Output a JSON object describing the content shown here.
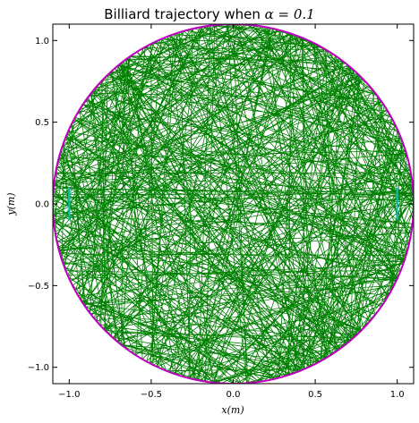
{
  "chart_data": {
    "type": "line",
    "title": "Billiard trajectory when ",
    "title_math": "α = 0.1",
    "xlabel": "x(m)",
    "ylabel": "y(m)",
    "xlim": [
      -1.1,
      1.1
    ],
    "ylim": [
      -1.1,
      1.1
    ],
    "xticks": [
      -1.0,
      -0.5,
      0.0,
      0.5,
      1.0
    ],
    "yticks": [
      -1.0,
      -0.5,
      0.0,
      0.5,
      1.0
    ],
    "xtick_labels": [
      "−1.0",
      "−0.5",
      "0.0",
      "0.5",
      "1.0"
    ],
    "ytick_labels": [
      "−1.0",
      "−0.5",
      "0.0",
      "0.5",
      "1.0"
    ],
    "grid": false,
    "colors": {
      "trajectory": "#008000",
      "boundary": "#bf00bf",
      "straight_segments": "#00bfbf"
    },
    "boundary": {
      "shape": "stadium",
      "alpha": 0.1,
      "radius": 1.1,
      "straight_segment_half_length": 0.1,
      "straight_segment_x": [
        -1.0,
        1.0
      ]
    },
    "series": [
      {
        "role": "trajectory",
        "color": "#008000"
      },
      {
        "role": "boundary",
        "color": "#bf00bf"
      },
      {
        "role": "straight-walls",
        "color": "#00bfbf"
      }
    ]
  }
}
